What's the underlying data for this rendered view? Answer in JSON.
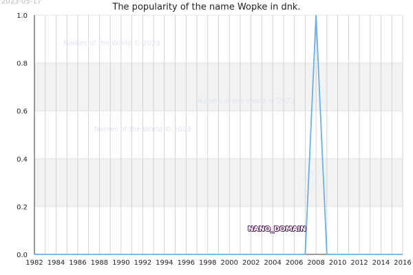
{
  "date_stamp": "2023-05-17",
  "watermark": "Names of the World © 2023",
  "badge": "NANO_DOMAIN",
  "colors": {
    "line": "#6aaee8",
    "band": "#f2f2f2",
    "grid": "#c8c8c8",
    "axis": "#333333"
  },
  "chart_data": {
    "type": "line",
    "title": "The popularity of the name Wopke in dnk.",
    "xlabel": "",
    "ylabel": "",
    "xlim": [
      1982,
      2016
    ],
    "ylim": [
      0,
      1
    ],
    "x_ticks": [
      "1982",
      "1984",
      "1986",
      "1988",
      "1990",
      "1992",
      "1994",
      "1996",
      "1998",
      "2000",
      "2002",
      "2004",
      "2006",
      "2008",
      "2010",
      "2012",
      "2014",
      "2016"
    ],
    "y_ticks": [
      "0.0",
      "0.2",
      "0.4",
      "0.6",
      "0.8",
      "1.0"
    ],
    "grid": true,
    "series": [
      {
        "x": [
          1982,
          2007,
          2008,
          2009,
          2016
        ],
        "y": [
          0,
          0,
          1,
          0,
          0
        ]
      }
    ]
  }
}
